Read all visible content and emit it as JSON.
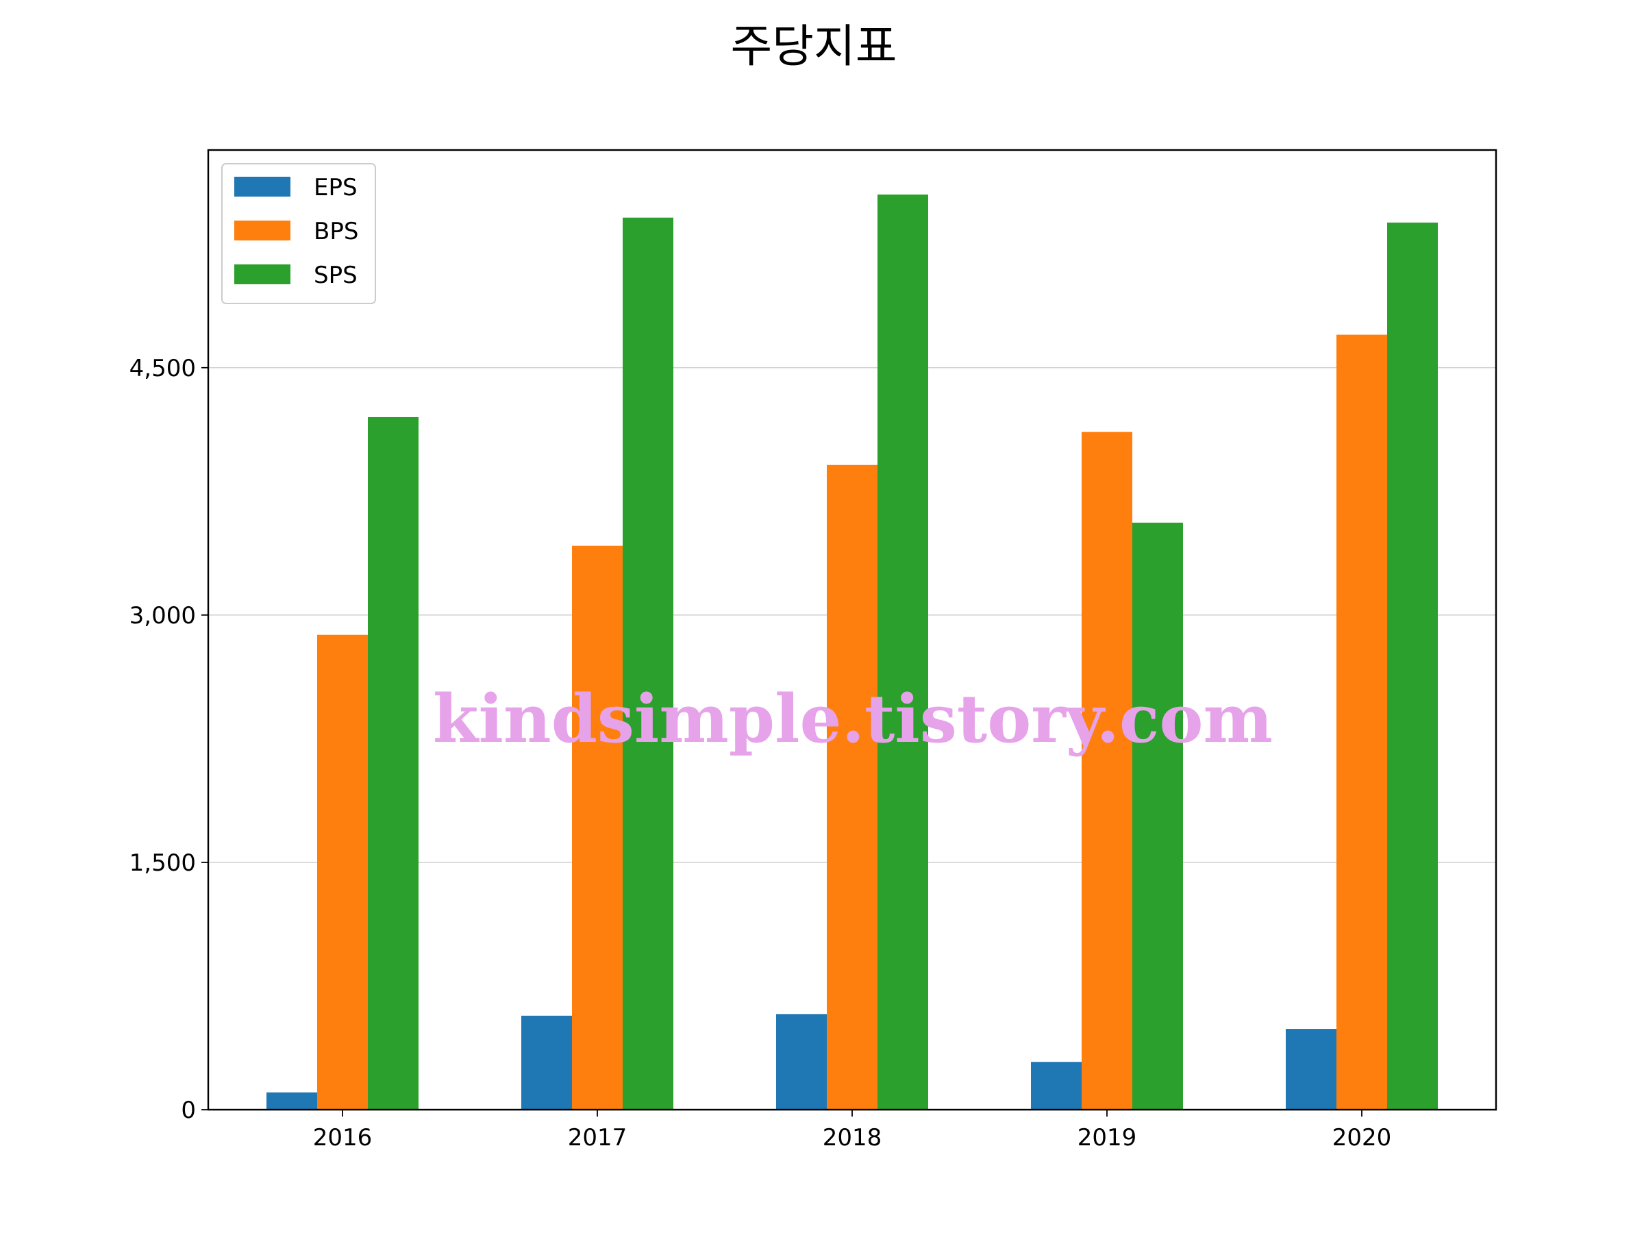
{
  "chart_data": {
    "type": "bar",
    "title": "주당지표",
    "xlabel": "",
    "ylabel": "",
    "categories": [
      "2016",
      "2017",
      "2018",
      "2019",
      "2020"
    ],
    "series": [
      {
        "name": "EPS",
        "color": "#1f77b4",
        "values": [
          105,
          570,
          580,
          290,
          490
        ]
      },
      {
        "name": "BPS",
        "color": "#ff7f0e",
        "values": [
          2880,
          3420,
          3910,
          4110,
          4700
        ]
      },
      {
        "name": "SPS",
        "color": "#2ca02c",
        "values": [
          4200,
          5410,
          5550,
          3560,
          5380
        ]
      }
    ],
    "ylim": [
      0,
      5820
    ],
    "yticks": [
      0,
      1500,
      3000,
      4500
    ],
    "ytick_labels": [
      "0",
      "1,500",
      "3,000",
      "4,500"
    ],
    "grid": "y",
    "legend": "top-left",
    "watermark": "kindsimple.tistory.com"
  }
}
